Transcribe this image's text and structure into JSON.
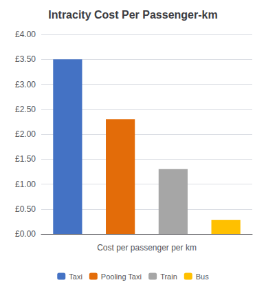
{
  "chart_data": {
    "type": "bar",
    "title": "Intracity Cost Per Passenger-km",
    "xlabel": "Cost per passenger per km",
    "categories": [
      "Taxi",
      "Pooling Taxi",
      "Train",
      "Bus"
    ],
    "values": [
      3.5,
      2.3,
      1.3,
      0.28
    ],
    "colors": [
      "#4472C4",
      "#E36C09",
      "#A6A6A6",
      "#FFC000"
    ],
    "ylim": [
      0,
      4.0
    ],
    "yticks": [
      {
        "value": 0.0,
        "label": "£0.00"
      },
      {
        "value": 0.5,
        "label": "£0.50"
      },
      {
        "value": 1.0,
        "label": "£1.00"
      },
      {
        "value": 1.5,
        "label": "£1.50"
      },
      {
        "value": 2.0,
        "label": "£2.00"
      },
      {
        "value": 2.5,
        "label": "£2.50"
      },
      {
        "value": 3.0,
        "label": "£3.00"
      },
      {
        "value": 3.5,
        "label": "£3.50"
      },
      {
        "value": 4.0,
        "label": "£4.00"
      }
    ],
    "grid": true,
    "legend": "bottom",
    "tick_labels": "y"
  }
}
